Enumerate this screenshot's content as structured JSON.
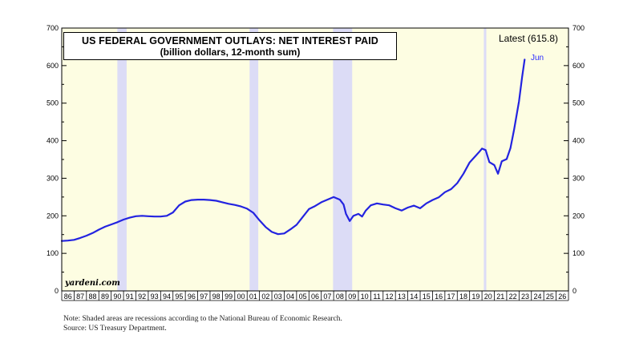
{
  "chart_data": {
    "type": "line",
    "title": "US FEDERAL GOVERNMENT OUTLAYS: NET INTEREST PAID",
    "subtitle": "(billion dollars, 12-month sum)",
    "latest_label": "Latest (615.8)",
    "end_label": "Jun",
    "brand": "yardeni.com",
    "xlim": [
      1986,
      2027
    ],
    "ylim": [
      0,
      700
    ],
    "y_ticks": [
      0,
      100,
      200,
      300,
      400,
      500,
      600,
      700
    ],
    "x_tick_labels": [
      "86",
      "87",
      "88",
      "89",
      "90",
      "91",
      "92",
      "93",
      "94",
      "95",
      "96",
      "97",
      "98",
      "99",
      "00",
      "01",
      "02",
      "03",
      "04",
      "05",
      "06",
      "07",
      "08",
      "09",
      "10",
      "11",
      "12",
      "13",
      "14",
      "15",
      "16",
      "17",
      "18",
      "19",
      "20",
      "21",
      "22",
      "23",
      "24",
      "25",
      "26"
    ],
    "grid": false,
    "recessions": [
      [
        1990.5,
        1991.25
      ],
      [
        2001.2,
        2001.9
      ],
      [
        2007.95,
        2009.5
      ],
      [
        2020.15,
        2020.35
      ]
    ],
    "series": [
      {
        "color": "#2323e0",
        "x": [
          1986.0,
          1986.5,
          1987.0,
          1987.5,
          1988.0,
          1988.5,
          1989.0,
          1989.5,
          1990.0,
          1990.5,
          1991.0,
          1991.5,
          1992.0,
          1992.5,
          1993.0,
          1993.5,
          1994.0,
          1994.5,
          1995.0,
          1995.5,
          1996.0,
          1996.5,
          1997.0,
          1997.5,
          1998.0,
          1998.5,
          1999.0,
          1999.5,
          2000.0,
          2000.5,
          2001.0,
          2001.5,
          2002.0,
          2002.5,
          2003.0,
          2003.5,
          2004.0,
          2004.5,
          2005.0,
          2005.5,
          2006.0,
          2006.5,
          2007.0,
          2007.5,
          2008.0,
          2008.5,
          2008.8,
          2009.0,
          2009.3,
          2009.6,
          2010.0,
          2010.3,
          2010.6,
          2011.0,
          2011.5,
          2012.0,
          2012.5,
          2013.0,
          2013.5,
          2014.0,
          2014.5,
          2015.0,
          2015.5,
          2016.0,
          2016.5,
          2017.0,
          2017.5,
          2018.0,
          2018.5,
          2019.0,
          2019.5,
          2019.8,
          2020.0,
          2020.3,
          2020.6,
          2021.0,
          2021.3,
          2021.6,
          2022.0,
          2022.3,
          2022.6,
          2023.0,
          2023.25,
          2023.45
        ],
        "y": [
          133,
          134,
          136,
          141,
          147,
          154,
          163,
          171,
          177,
          183,
          190,
          195,
          199,
          200,
          199,
          198,
          198,
          200,
          209,
          228,
          238,
          242,
          243,
          243,
          242,
          240,
          236,
          232,
          229,
          225,
          219,
          208,
          188,
          170,
          157,
          151,
          153,
          164,
          176,
          197,
          218,
          226,
          236,
          243,
          250,
          243,
          230,
          205,
          186,
          200,
          205,
          198,
          214,
          228,
          233,
          230,
          228,
          220,
          214,
          222,
          227,
          220,
          233,
          242,
          249,
          263,
          271,
          287,
          312,
          342,
          360,
          371,
          379,
          375,
          343,
          335,
          312,
          345,
          351,
          380,
          430,
          505,
          570,
          616
        ]
      }
    ]
  },
  "note": "Note: Shaded areas are recessions according to the National Bureau of Economic Research.",
  "source": "Source: US Treasury Department."
}
